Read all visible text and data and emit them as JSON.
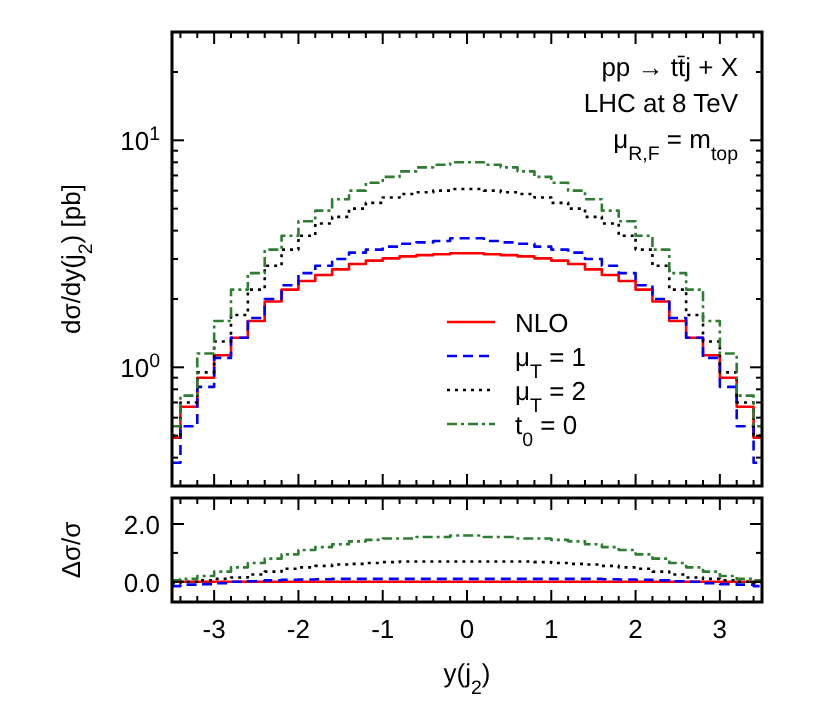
{
  "chart_data": [
    {
      "type": "histogram",
      "ylabel": "dσ/dy(j$_{2}$) [pb]",
      "log": "y",
      "xlim": [
        -3.5,
        3.5
      ],
      "ylim": [
        0.3,
        30
      ],
      "xticks": [
        -3,
        -2,
        -1,
        0,
        1,
        2,
        3,
        {
          "value": -3.4,
          "label": null
        },
        {
          "value": -3.2,
          "label": null
        },
        {
          "value": -2.8,
          "label": null
        },
        {
          "value": -2.6,
          "label": null
        },
        {
          "value": -2.4,
          "label": null
        },
        {
          "value": -2.2,
          "label": null
        },
        {
          "value": -1.8,
          "label": null
        },
        {
          "value": -1.6,
          "label": null
        },
        {
          "value": -1.4,
          "label": null
        },
        {
          "value": -1.2,
          "label": null
        },
        {
          "value": -0.8,
          "label": null
        },
        {
          "value": -0.6,
          "label": null
        },
        {
          "value": -0.4,
          "label": null
        },
        {
          "value": -0.2,
          "label": null
        },
        {
          "value": 0.2,
          "label": null
        },
        {
          "value": 0.4,
          "label": null
        },
        {
          "value": 0.6,
          "label": null
        },
        {
          "value": 0.8,
          "label": null
        },
        {
          "value": 1.2,
          "label": null
        },
        {
          "value": 1.4,
          "label": null
        },
        {
          "value": 1.6,
          "label": null
        },
        {
          "value": 1.8,
          "label": null
        },
        {
          "value": 2.2,
          "label": null
        },
        {
          "value": 2.4,
          "label": null
        },
        {
          "value": 2.6,
          "label": null
        },
        {
          "value": 2.8,
          "label": null
        },
        {
          "value": 3.2,
          "label": null
        },
        {
          "value": 3.4,
          "label": null
        }
      ],
      "yticks": [
        {
          "value": 1,
          "label": "10$^{0}$"
        },
        {
          "value": 10,
          "label": "10$^{1}$"
        },
        {
          "value": 0.4,
          "label": null
        },
        {
          "value": 0.5,
          "label": null
        },
        {
          "value": 0.6,
          "label": null
        },
        {
          "value": 0.7,
          "label": null
        },
        {
          "value": 0.8,
          "label": null
        },
        {
          "value": 0.9,
          "label": null
        },
        {
          "value": 2,
          "label": null
        },
        {
          "value": 3,
          "label": null
        },
        {
          "value": 4,
          "label": null
        },
        {
          "value": 5,
          "label": null
        },
        {
          "value": 6,
          "label": null
        },
        {
          "value": 7,
          "label": null
        },
        {
          "value": 8,
          "label": null
        },
        {
          "value": 9,
          "label": null
        },
        {
          "value": 20,
          "label": null
        }
      ],
      "tick_labels": "y",
      "grid": false,
      "legend": "bottom",
      "annotations": [
        "pp → tt̄j + X",
        "LHC at 8 TeV",
        "μ$_{R,F}$ = m$_{top}$"
      ],
      "bins": [
        -3.5,
        -3.4,
        -3.2,
        -3.0,
        -2.8,
        -2.6,
        -2.4,
        -2.2,
        -2.0,
        -1.8,
        -1.6,
        -1.4,
        -1.2,
        -1.0,
        -0.8,
        -0.6,
        -0.4,
        -0.2,
        0,
        0.2,
        0.4,
        0.6,
        0.8,
        1.0,
        1.2,
        1.4,
        1.6,
        1.8,
        2.0,
        2.2,
        2.4,
        2.6,
        2.8,
        3.0,
        3.2,
        3.4,
        3.5
      ],
      "series": [
        {
          "name": "NLO",
          "color": "#ff0000",
          "line_style": "solid",
          "values": [
            0.49,
            0.67,
            0.9,
            1.13,
            1.35,
            1.6,
            1.95,
            2.2,
            2.4,
            2.55,
            2.7,
            2.85,
            2.95,
            3.02,
            3.08,
            3.12,
            3.15,
            3.18,
            3.18,
            3.15,
            3.12,
            3.08,
            3.02,
            2.95,
            2.85,
            2.7,
            2.55,
            2.4,
            2.2,
            1.95,
            1.6,
            1.35,
            1.13,
            0.9,
            0.67,
            0.49
          ]
        },
        {
          "name": "μ$_{T}$ = 1",
          "color": "#0000ff",
          "line_style": "dashed",
          "values": [
            0.38,
            0.55,
            0.82,
            1.1,
            1.35,
            1.65,
            2.0,
            2.3,
            2.6,
            2.8,
            3.0,
            3.2,
            3.3,
            3.4,
            3.5,
            3.55,
            3.6,
            3.7,
            3.7,
            3.6,
            3.55,
            3.5,
            3.4,
            3.3,
            3.2,
            3.0,
            2.8,
            2.6,
            2.3,
            2.0,
            1.65,
            1.35,
            1.1,
            0.82,
            0.55,
            0.38
          ]
        },
        {
          "name": "μ$_{T}$ = 2",
          "color": "#000000",
          "line_style": "dotted",
          "values": [
            0.5,
            0.7,
            0.95,
            1.3,
            1.7,
            2.2,
            2.8,
            3.3,
            3.8,
            4.3,
            4.6,
            5.0,
            5.3,
            5.6,
            5.8,
            5.9,
            6.0,
            6.1,
            6.1,
            6.0,
            5.9,
            5.8,
            5.6,
            5.3,
            5.0,
            4.6,
            4.3,
            3.8,
            3.3,
            2.8,
            2.2,
            1.7,
            1.3,
            0.95,
            0.7,
            0.5
          ]
        },
        {
          "name": "t$_{0}$ = 0",
          "color": "#2e7d32",
          "line_style": "dashdot",
          "values": [
            0.55,
            0.75,
            1.15,
            1.6,
            2.2,
            2.6,
            3.3,
            3.8,
            4.4,
            4.9,
            5.5,
            6.0,
            6.5,
            6.9,
            7.3,
            7.6,
            7.8,
            8.0,
            8.0,
            7.8,
            7.6,
            7.3,
            6.9,
            6.5,
            6.0,
            5.5,
            4.9,
            4.4,
            3.8,
            3.3,
            2.6,
            2.2,
            1.6,
            1.15,
            0.75,
            0.55
          ]
        }
      ]
    },
    {
      "type": "histogram",
      "xlabel": "y(j$_{2}$)",
      "ylabel": "Δσ/σ",
      "xlim": [
        -3.5,
        3.5
      ],
      "ylim": [
        -0.7,
        2.9
      ],
      "xticks": [
        -3,
        -2,
        -1,
        0,
        1,
        2,
        3,
        {
          "value": -3.4,
          "label": null
        },
        {
          "value": -3.2,
          "label": null
        },
        {
          "value": -2.8,
          "label": null
        },
        {
          "value": -2.6,
          "label": null
        },
        {
          "value": -2.4,
          "label": null
        },
        {
          "value": -2.2,
          "label": null
        },
        {
          "value": -1.8,
          "label": null
        },
        {
          "value": -1.6,
          "label": null
        },
        {
          "value": -1.4,
          "label": null
        },
        {
          "value": -1.2,
          "label": null
        },
        {
          "value": -0.8,
          "label": null
        },
        {
          "value": -0.6,
          "label": null
        },
        {
          "value": -0.4,
          "label": null
        },
        {
          "value": -0.2,
          "label": null
        },
        {
          "value": 0.2,
          "label": null
        },
        {
          "value": 0.4,
          "label": null
        },
        {
          "value": 0.6,
          "label": null
        },
        {
          "value": 0.8,
          "label": null
        },
        {
          "value": 1.2,
          "label": null
        },
        {
          "value": 1.4,
          "label": null
        },
        {
          "value": 1.6,
          "label": null
        },
        {
          "value": 1.8,
          "label": null
        },
        {
          "value": 2.2,
          "label": null
        },
        {
          "value": 2.4,
          "label": null
        },
        {
          "value": 2.6,
          "label": null
        },
        {
          "value": 2.8,
          "label": null
        },
        {
          "value": 3.2,
          "label": null
        },
        {
          "value": 3.4,
          "label": null
        }
      ],
      "yticks": [
        {
          "value": 0,
          "label": "0.0"
        },
        {
          "value": 2,
          "label": "2.0"
        },
        {
          "value": 1,
          "label": null
        }
      ],
      "grid": false,
      "legend": false,
      "bins": [
        -3.5,
        -3.4,
        -3.2,
        -3.0,
        -2.8,
        -2.6,
        -2.4,
        -2.2,
        -2.0,
        -1.8,
        -1.6,
        -1.4,
        -1.2,
        -1.0,
        -0.8,
        -0.6,
        -0.4,
        -0.2,
        0,
        0.2,
        0.4,
        0.6,
        0.8,
        1.0,
        1.2,
        1.4,
        1.6,
        1.8,
        2.0,
        2.2,
        2.4,
        2.6,
        2.8,
        3.0,
        3.2,
        3.4,
        3.5
      ],
      "series": [
        {
          "color": "#ff0000",
          "line_style": "solid",
          "values": [
            0,
            0,
            0,
            0,
            0,
            0,
            0,
            0,
            0,
            0,
            0,
            0,
            0,
            0,
            0,
            0,
            0,
            0,
            0,
            0,
            0,
            0,
            0,
            0,
            0,
            0,
            0,
            0,
            0,
            0,
            0,
            0,
            0,
            0,
            0,
            0
          ]
        },
        {
          "color": "#0000ff",
          "line_style": "dashed",
          "values": [
            -0.15,
            -0.1,
            -0.08,
            -0.05,
            0,
            0.02,
            0.05,
            0.07,
            0.08,
            0.09,
            0.1,
            0.1,
            0.1,
            0.1,
            0.1,
            0.1,
            0.1,
            0.1,
            0.1,
            0.1,
            0.1,
            0.1,
            0.1,
            0.1,
            0.1,
            0.1,
            0.09,
            0.08,
            0.07,
            0.05,
            0.02,
            0,
            -0.05,
            -0.08,
            -0.1,
            -0.15
          ]
        },
        {
          "color": "#000000",
          "line_style": "dotted",
          "values": [
            -0.05,
            0,
            0.05,
            0.1,
            0.15,
            0.25,
            0.35,
            0.45,
            0.5,
            0.55,
            0.6,
            0.62,
            0.65,
            0.68,
            0.7,
            0.7,
            0.7,
            0.7,
            0.7,
            0.7,
            0.7,
            0.7,
            0.68,
            0.65,
            0.62,
            0.6,
            0.55,
            0.5,
            0.45,
            0.35,
            0.25,
            0.15,
            0.1,
            0.05,
            0,
            -0.05
          ]
        },
        {
          "color": "#2e7d32",
          "line_style": "dashdot",
          "values": [
            0.05,
            0.1,
            0.2,
            0.35,
            0.5,
            0.65,
            0.8,
            0.95,
            1.1,
            1.2,
            1.3,
            1.4,
            1.45,
            1.5,
            1.5,
            1.55,
            1.55,
            1.6,
            1.6,
            1.55,
            1.55,
            1.5,
            1.5,
            1.45,
            1.4,
            1.3,
            1.2,
            1.1,
            0.95,
            0.8,
            0.65,
            0.5,
            0.35,
            0.2,
            0.1,
            0.05
          ]
        }
      ]
    }
  ]
}
